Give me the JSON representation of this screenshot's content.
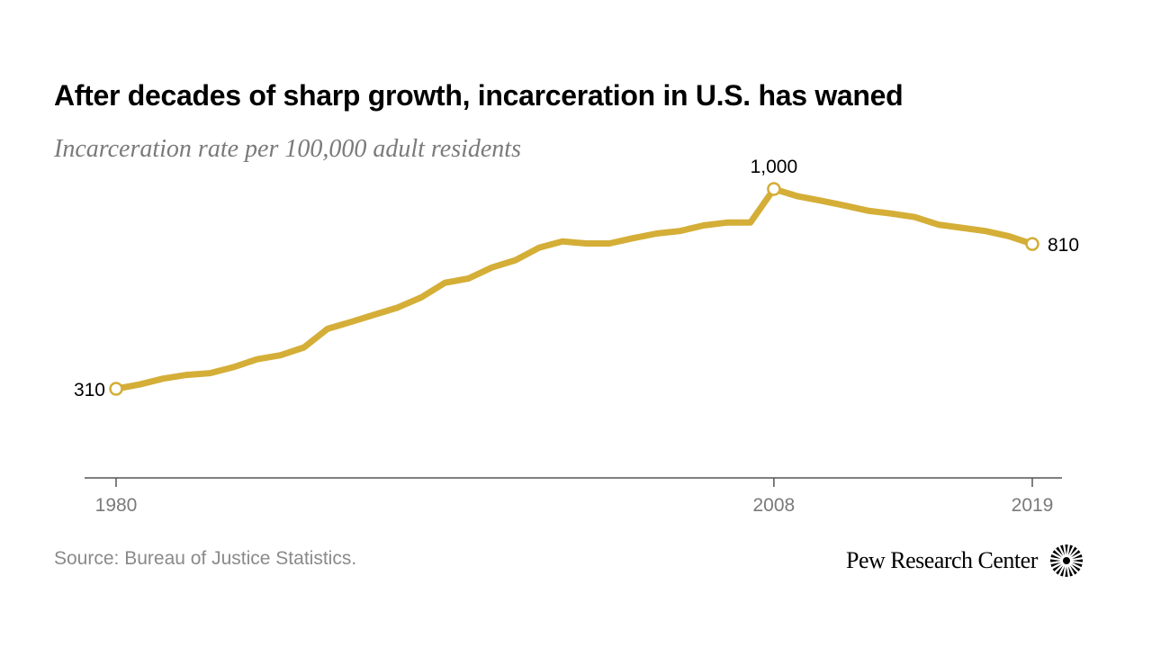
{
  "title": "After decades of sharp growth, incarceration in U.S. has waned",
  "subtitle": "Incarceration rate per 100,000 adult residents",
  "source": "Source: Bureau of Justice Statistics.",
  "brand": "Pew Research Center",
  "colors": {
    "line": "#d4ae37",
    "axis": "#555555",
    "tick_text": "#7a7a7a",
    "label_text": "#000000"
  },
  "chart_data": {
    "type": "line",
    "title": "After decades of sharp growth, incarceration in U.S. has waned",
    "ylabel": "Incarceration rate per 100,000 adult residents",
    "xlabel": "",
    "x": [
      1980,
      1981,
      1982,
      1983,
      1984,
      1985,
      1986,
      1987,
      1988,
      1989,
      1990,
      1991,
      1992,
      1993,
      1994,
      1995,
      1996,
      1997,
      1998,
      1999,
      2000,
      2001,
      2002,
      2003,
      2004,
      2005,
      2006,
      2007,
      2008,
      2009,
      2010,
      2011,
      2012,
      2013,
      2014,
      2015,
      2016,
      2017,
      2018,
      2019
    ],
    "values": [
      310,
      325,
      345,
      358,
      364,
      385,
      412,
      426,
      453,
      517,
      541,
      566,
      591,
      626,
      676,
      691,
      729,
      754,
      797,
      819,
      812,
      812,
      830,
      846,
      855,
      874,
      884,
      884,
      1000,
      975,
      960,
      943,
      925,
      915,
      903,
      877,
      866,
      855,
      837,
      810
    ],
    "xlim": [
      1980,
      2019
    ],
    "ylim": [
      80,
      1120
    ],
    "xticks": [
      1980,
      2008,
      2019
    ],
    "annotations": [
      {
        "x": 1980,
        "value": 310,
        "label": "310"
      },
      {
        "x": 2008,
        "value": 1000,
        "label": "1,000"
      },
      {
        "x": 2019,
        "value": 810,
        "label": "810"
      }
    ],
    "grid": false,
    "legend": "none"
  }
}
